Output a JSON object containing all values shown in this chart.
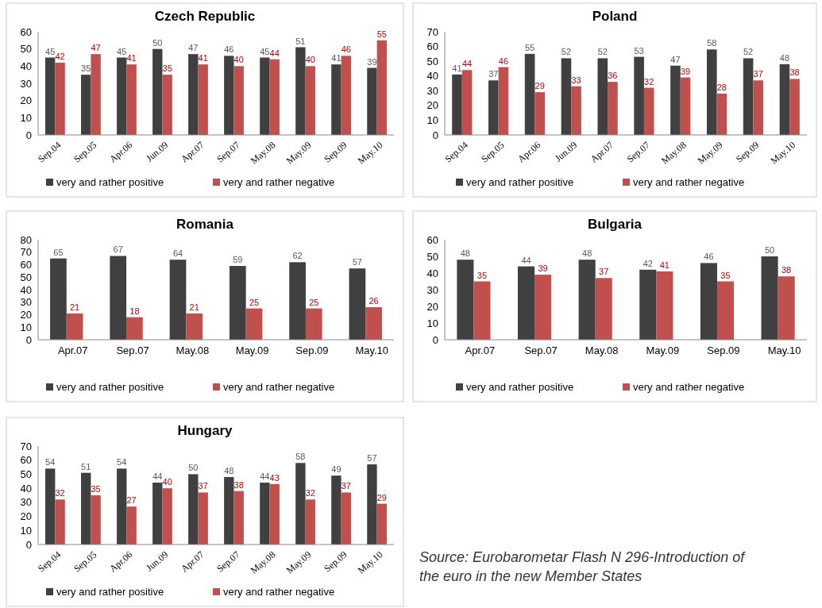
{
  "chart_data": [
    {
      "type": "bar",
      "title": "Czech Republic",
      "categories": [
        "Sep.04",
        "Sep.05",
        "Apr.06",
        "Jun.09",
        "Apr.07",
        "Sep.07",
        "May.08",
        "May.09",
        "Sep.09",
        "May.10"
      ],
      "series": [
        {
          "name": "very and rather positive",
          "color": "#404040",
          "values": [
            45,
            35,
            45,
            50,
            47,
            46,
            45,
            51,
            41,
            39
          ]
        },
        {
          "name": "very and rather negative",
          "color": "#c0504d",
          "values": [
            42,
            47,
            41,
            35,
            41,
            40,
            44,
            40,
            46,
            55
          ]
        }
      ],
      "ylim": [
        0,
        60
      ],
      "yticks": [
        0,
        10,
        20,
        30,
        40,
        50,
        60
      ],
      "data_labels": true,
      "legend": "bottom",
      "grid": false
    },
    {
      "type": "bar",
      "title": "Poland",
      "categories": [
        "Sep.04",
        "Sep.05",
        "Apr.06",
        "Jun.09",
        "Apr.07",
        "Sep.07",
        "May.08",
        "May.09",
        "Sep.09",
        "May.10"
      ],
      "series": [
        {
          "name": "very and rather positive",
          "color": "#404040",
          "values": [
            41,
            37,
            55,
            52,
            52,
            53,
            47,
            58,
            52,
            48
          ]
        },
        {
          "name": "very and rather negative",
          "color": "#c0504d",
          "values": [
            44,
            46,
            29,
            33,
            36,
            32,
            39,
            28,
            37,
            38
          ]
        }
      ],
      "ylim": [
        0,
        70
      ],
      "yticks": [
        0,
        10,
        20,
        30,
        40,
        50,
        60,
        70
      ],
      "data_labels": true,
      "legend": "bottom",
      "grid": false
    },
    {
      "type": "bar",
      "title": "Romania",
      "categories": [
        "Apr.07",
        "Sep.07",
        "May.08",
        "May.09",
        "Sep.09",
        "May.10"
      ],
      "series": [
        {
          "name": "very and rather positive",
          "color": "#404040",
          "values": [
            65,
            67,
            64,
            59,
            62,
            57
          ]
        },
        {
          "name": "very and rather negative",
          "color": "#c0504d",
          "values": [
            21,
            18,
            21,
            25,
            25,
            26
          ]
        }
      ],
      "ylim": [
        0,
        80
      ],
      "yticks": [
        0,
        10,
        20,
        30,
        40,
        50,
        60,
        70,
        80
      ],
      "data_labels": true,
      "legend": "bottom",
      "grid": false
    },
    {
      "type": "bar",
      "title": "Bulgaria",
      "categories": [
        "Apr.07",
        "Sep.07",
        "May.08",
        "May.09",
        "Sep.09",
        "May.10"
      ],
      "series": [
        {
          "name": "very and rather positive",
          "color": "#404040",
          "values": [
            48,
            44,
            48,
            42,
            46,
            50
          ]
        },
        {
          "name": "very and rather negative",
          "color": "#c0504d",
          "values": [
            35,
            39,
            37,
            41,
            35,
            38
          ]
        }
      ],
      "ylim": [
        0,
        60
      ],
      "yticks": [
        0,
        10,
        20,
        30,
        40,
        50,
        60
      ],
      "data_labels": true,
      "legend": "bottom",
      "grid": false
    },
    {
      "type": "bar",
      "title": "Hungary",
      "categories": [
        "Sep.04",
        "Sep.05",
        "Apr.06",
        "Jun.09",
        "Apr.07",
        "Sep.07",
        "May.08",
        "May.09",
        "Sep.09",
        "May.10"
      ],
      "series": [
        {
          "name": "very and rather positive",
          "color": "#404040",
          "values": [
            54,
            51,
            54,
            44,
            50,
            48,
            44,
            58,
            49,
            57
          ]
        },
        {
          "name": "very and rather negative",
          "color": "#c0504d",
          "values": [
            32,
            35,
            27,
            40,
            37,
            38,
            43,
            32,
            37,
            29
          ]
        }
      ],
      "ylim": [
        0,
        70
      ],
      "yticks": [
        0,
        10,
        20,
        30,
        40,
        50,
        60,
        70
      ],
      "data_labels": true,
      "legend": "bottom",
      "grid": false,
      "annotations": [
        "Source: Eurobarometar Flash N 296-Introduction of the euro in the new Member States"
      ]
    }
  ]
}
